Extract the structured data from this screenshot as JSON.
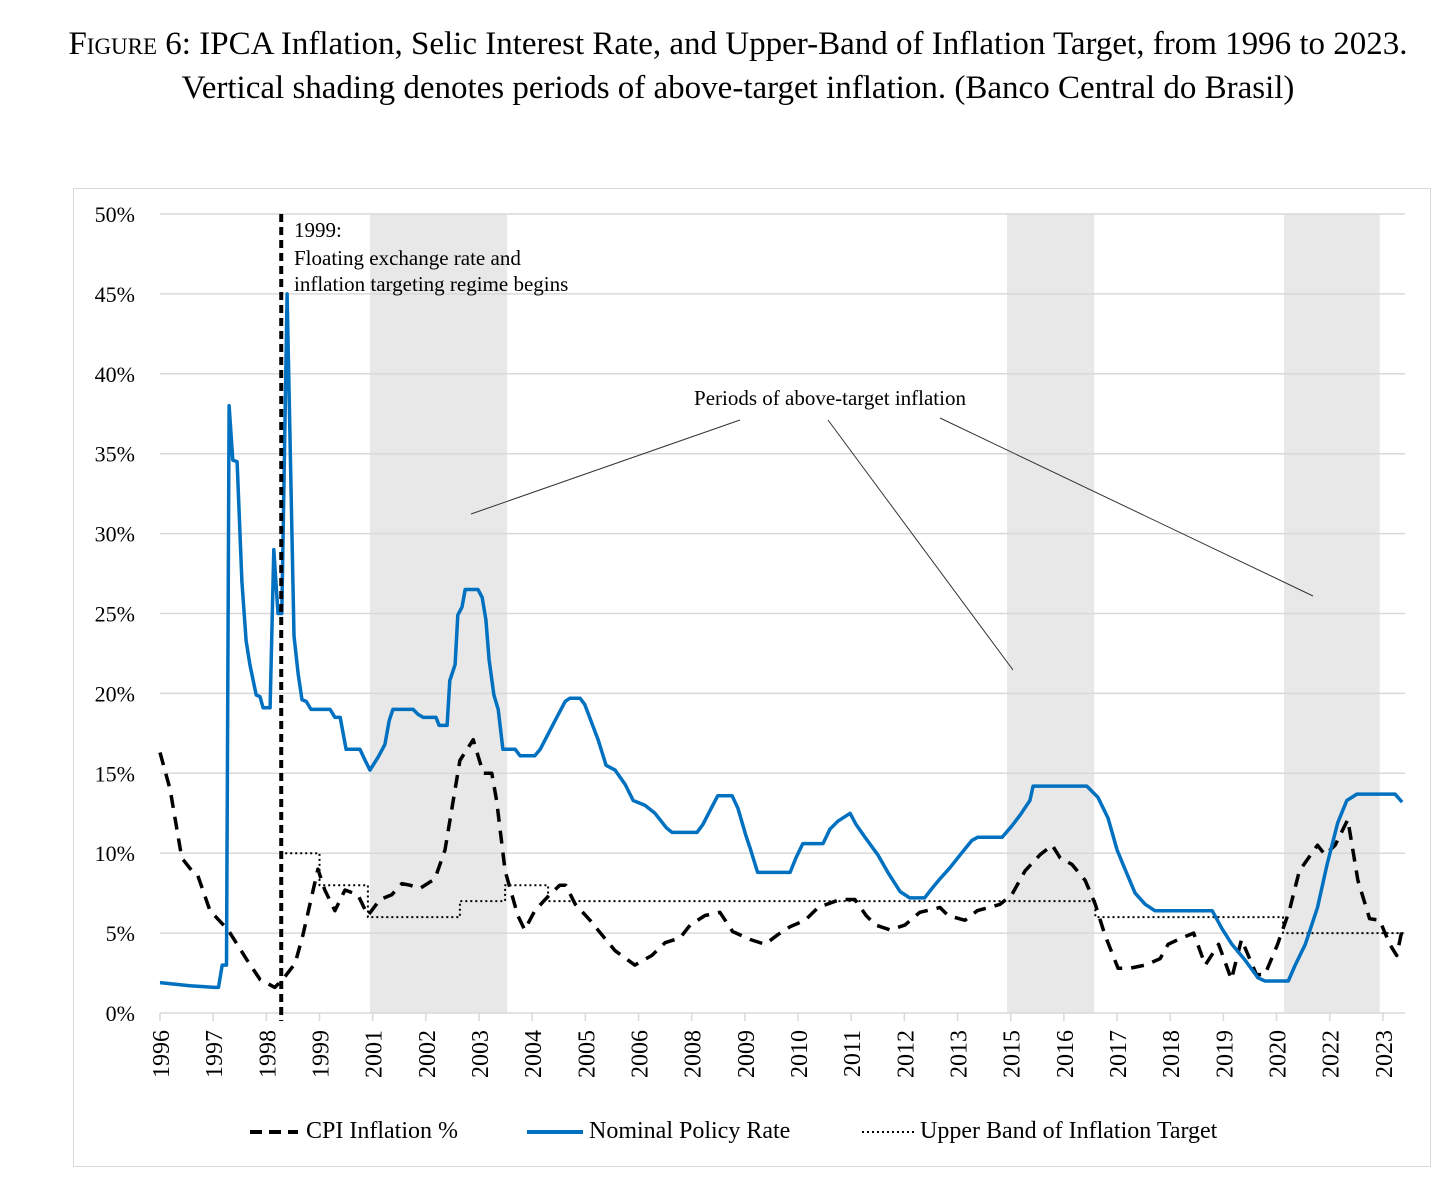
{
  "caption": {
    "figure_label": "Figure 6:",
    "text": "IPCA Inflation, Selic Interest Rate, and Upper-Band of Inflation Target, from 1996 to 2023. Vertical shading denotes periods of above-target inflation. (Banco Central do Brasil)"
  },
  "chart_data": {
    "type": "line",
    "title": "IPCA Inflation, Selic Interest Rate, and Upper-Band of Inflation Target, 1996-2023",
    "xlabel": "",
    "ylabel": "",
    "x_note": "x values are positions measured in tick-label intervals (0 = first tick label)",
    "x_tick_labels": [
      "1996",
      "1997",
      "1998",
      "1999",
      "2001",
      "2002",
      "2003",
      "2004",
      "2005",
      "2006",
      "2008",
      "2009",
      "2010",
      "2011",
      "2012",
      "2013",
      "2015",
      "2016",
      "2017",
      "2018",
      "2019",
      "2020",
      "2022",
      "2023"
    ],
    "y_tick_labels": [
      "0%",
      "5%",
      "10%",
      "15%",
      "20%",
      "25%",
      "30%",
      "35%",
      "40%",
      "45%",
      "50%"
    ],
    "ylim": [
      0,
      50
    ],
    "xlim": [
      0,
      23.42
    ],
    "grid": "horizontal",
    "legend_position": "bottom",
    "annotations": {
      "regime_line_x": 2.28,
      "regime_label_year": "1999:",
      "regime_label_lines": [
        "Floating exchange rate and",
        "inflation targeting regime begins"
      ],
      "periods_label": "Periods of above-target inflation"
    },
    "shaded_periods": [
      [
        3.95,
        6.53
      ],
      [
        15.93,
        17.57
      ],
      [
        21.14,
        22.94
      ]
    ],
    "series": [
      {
        "name": "CPI Inflation %",
        "style": "dashed",
        "color": "#000000",
        "points": [
          [
            0,
            16.3
          ],
          [
            0.19,
            14
          ],
          [
            0.41,
            9.7
          ],
          [
            0.6,
            8.9
          ],
          [
            0.71,
            8.6
          ],
          [
            0.94,
            6.4
          ],
          [
            1.28,
            5.2
          ],
          [
            1.64,
            3.3
          ],
          [
            1.88,
            2.1
          ],
          [
            2.16,
            1.6
          ],
          [
            2.31,
            2.1
          ],
          [
            2.54,
            3.1
          ],
          [
            2.69,
            4.9
          ],
          [
            2.97,
            9
          ],
          [
            3.1,
            7.7
          ],
          [
            3.29,
            6.4
          ],
          [
            3.48,
            7.7
          ],
          [
            3.72,
            7.4
          ],
          [
            3.91,
            6.1
          ],
          [
            4.14,
            7.1
          ],
          [
            4.36,
            7.4
          ],
          [
            4.55,
            8.1
          ],
          [
            4.7,
            8
          ],
          [
            4.89,
            7.8
          ],
          [
            5.17,
            8.4
          ],
          [
            5.36,
            10.2
          ],
          [
            5.64,
            15.8
          ],
          [
            5.89,
            17.1
          ],
          [
            6.08,
            15
          ],
          [
            6.24,
            15
          ],
          [
            6.33,
            13.3
          ],
          [
            6.49,
            8.9
          ],
          [
            6.73,
            6.1
          ],
          [
            6.86,
            5.2
          ],
          [
            7.05,
            6.4
          ],
          [
            7.33,
            7.4
          ],
          [
            7.52,
            8
          ],
          [
            7.63,
            8
          ],
          [
            7.81,
            6.8
          ],
          [
            8.09,
            5.8
          ],
          [
            8.31,
            4.9
          ],
          [
            8.56,
            3.9
          ],
          [
            8.93,
            3.0
          ],
          [
            9.25,
            3.6
          ],
          [
            9.5,
            4.4
          ],
          [
            9.78,
            4.7
          ],
          [
            9.97,
            5.5
          ],
          [
            10.25,
            6.1
          ],
          [
            10.53,
            6.3
          ],
          [
            10.77,
            5.1
          ],
          [
            11.1,
            4.6
          ],
          [
            11.38,
            4.3
          ],
          [
            11.62,
            4.9
          ],
          [
            11.85,
            5.4
          ],
          [
            12.13,
            5.8
          ],
          [
            12.38,
            6.6
          ],
          [
            12.79,
            7.1
          ],
          [
            13.07,
            7.1
          ],
          [
            13.28,
            6.1
          ],
          [
            13.46,
            5.5
          ],
          [
            13.73,
            5.2
          ],
          [
            14.01,
            5.5
          ],
          [
            14.29,
            6.3
          ],
          [
            14.67,
            6.6
          ],
          [
            14.82,
            6.1
          ],
          [
            15.14,
            5.8
          ],
          [
            15.37,
            6.4
          ],
          [
            15.8,
            6.8
          ],
          [
            16.02,
            7.4
          ],
          [
            16.27,
            8.9
          ],
          [
            16.55,
            9.9
          ],
          [
            16.78,
            10.5
          ],
          [
            16.93,
            9.7
          ],
          [
            17.15,
            9.3
          ],
          [
            17.4,
            8.3
          ],
          [
            17.59,
            6.8
          ],
          [
            17.77,
            4.9
          ],
          [
            18.02,
            2.8
          ],
          [
            18.24,
            2.8
          ],
          [
            18.53,
            3.0
          ],
          [
            18.81,
            3.4
          ],
          [
            18.96,
            4.3
          ],
          [
            19.15,
            4.6
          ],
          [
            19.44,
            5
          ],
          [
            19.66,
            3.0
          ],
          [
            19.91,
            4.3
          ],
          [
            20.15,
            2.1
          ],
          [
            20.34,
            4.6
          ],
          [
            20.62,
            2.4
          ],
          [
            20.78,
            2.4
          ],
          [
            21.02,
            4.3
          ],
          [
            21.24,
            6.4
          ],
          [
            21.43,
            8.9
          ],
          [
            21.77,
            10.5
          ],
          [
            21.91,
            9.9
          ],
          [
            22.1,
            10.5
          ],
          [
            22.34,
            12.1
          ],
          [
            22.53,
            8.3
          ],
          [
            22.75,
            5.9
          ],
          [
            22.94,
            5.8
          ],
          [
            23.13,
            4.3
          ],
          [
            23.26,
            3.6
          ],
          [
            23.36,
            5.2
          ]
        ]
      },
      {
        "name": "Nominal Policy Rate",
        "style": "solid",
        "color": "#0070C0",
        "points": [
          [
            0,
            1.9
          ],
          [
            0.56,
            1.7
          ],
          [
            1.03,
            1.6
          ],
          [
            1.1,
            1.6
          ],
          [
            1.17,
            3.0
          ],
          [
            1.25,
            3.0
          ],
          [
            1.3,
            38
          ],
          [
            1.37,
            34.6
          ],
          [
            1.45,
            34.5
          ],
          [
            1.54,
            27
          ],
          [
            1.62,
            23.3
          ],
          [
            1.69,
            21.8
          ],
          [
            1.81,
            19.9
          ],
          [
            1.88,
            19.8
          ],
          [
            1.94,
            19.1
          ],
          [
            2.07,
            19.1
          ],
          [
            2.14,
            29
          ],
          [
            2.22,
            25
          ],
          [
            2.29,
            25
          ],
          [
            2.39,
            45
          ],
          [
            2.52,
            23.6
          ],
          [
            2.6,
            21.2
          ],
          [
            2.67,
            19.6
          ],
          [
            2.75,
            19.5
          ],
          [
            2.84,
            19
          ],
          [
            3.2,
            19
          ],
          [
            3.29,
            18.5
          ],
          [
            3.39,
            18.5
          ],
          [
            3.5,
            16.5
          ],
          [
            3.76,
            16.5
          ],
          [
            3.86,
            15.8
          ],
          [
            3.95,
            15.2
          ],
          [
            4.1,
            16
          ],
          [
            4.23,
            16.8
          ],
          [
            4.31,
            18.3
          ],
          [
            4.38,
            19
          ],
          [
            4.76,
            19
          ],
          [
            4.85,
            18.7
          ],
          [
            4.95,
            18.5
          ],
          [
            5.19,
            18.5
          ],
          [
            5.25,
            18
          ],
          [
            5.4,
            18
          ],
          [
            5.45,
            20.8
          ],
          [
            5.55,
            21.8
          ],
          [
            5.6,
            24.9
          ],
          [
            5.68,
            25.4
          ],
          [
            5.74,
            26.5
          ],
          [
            5.98,
            26.5
          ],
          [
            6.06,
            26
          ],
          [
            6.13,
            24.6
          ],
          [
            6.19,
            22.1
          ],
          [
            6.28,
            19.9
          ],
          [
            6.36,
            19
          ],
          [
            6.45,
            16.5
          ],
          [
            6.68,
            16.5
          ],
          [
            6.77,
            16.1
          ],
          [
            7.05,
            16.1
          ],
          [
            7.15,
            16.5
          ],
          [
            7.43,
            18.3
          ],
          [
            7.62,
            19.5
          ],
          [
            7.71,
            19.7
          ],
          [
            7.9,
            19.7
          ],
          [
            7.99,
            19.3
          ],
          [
            8.24,
            17.1
          ],
          [
            8.39,
            15.5
          ],
          [
            8.56,
            15.2
          ],
          [
            8.75,
            14.3
          ],
          [
            8.9,
            13.3
          ],
          [
            9.12,
            13
          ],
          [
            9.31,
            12.5
          ],
          [
            9.52,
            11.6
          ],
          [
            9.63,
            11.3
          ],
          [
            10.1,
            11.3
          ],
          [
            10.21,
            11.8
          ],
          [
            10.38,
            12.9
          ],
          [
            10.49,
            13.6
          ],
          [
            10.76,
            13.6
          ],
          [
            10.87,
            12.8
          ],
          [
            11.02,
            11.1
          ],
          [
            11.1,
            10.3
          ],
          [
            11.24,
            8.8
          ],
          [
            11.85,
            8.8
          ],
          [
            11.96,
            9.7
          ],
          [
            12.09,
            10.6
          ],
          [
            12.47,
            10.6
          ],
          [
            12.6,
            11.5
          ],
          [
            12.75,
            12
          ],
          [
            12.98,
            12.5
          ],
          [
            13.09,
            11.8
          ],
          [
            13.26,
            11
          ],
          [
            13.5,
            9.9
          ],
          [
            13.69,
            8.8
          ],
          [
            13.92,
            7.6
          ],
          [
            14.1,
            7.2
          ],
          [
            14.38,
            7.2
          ],
          [
            14.52,
            7.8
          ],
          [
            14.67,
            8.4
          ],
          [
            14.86,
            9.1
          ],
          [
            15.05,
            9.9
          ],
          [
            15.27,
            10.8
          ],
          [
            15.38,
            11
          ],
          [
            15.84,
            11
          ],
          [
            16.02,
            11.7
          ],
          [
            16.18,
            12.4
          ],
          [
            16.36,
            13.3
          ],
          [
            16.42,
            14.2
          ],
          [
            17.43,
            14.2
          ],
          [
            17.64,
            13.5
          ],
          [
            17.83,
            12.2
          ],
          [
            18.0,
            10.2
          ],
          [
            18.15,
            9
          ],
          [
            18.34,
            7.5
          ],
          [
            18.53,
            6.8
          ],
          [
            18.71,
            6.4
          ],
          [
            19.79,
            6.4
          ],
          [
            19.97,
            5.3
          ],
          [
            20.16,
            4.3
          ],
          [
            20.41,
            3.3
          ],
          [
            20.65,
            2.2
          ],
          [
            20.78,
            2.0
          ],
          [
            21.22,
            2.0
          ],
          [
            21.35,
            3.0
          ],
          [
            21.54,
            4.3
          ],
          [
            21.77,
            6.6
          ],
          [
            21.95,
            9.3
          ],
          [
            22.15,
            11.9
          ],
          [
            22.32,
            13.3
          ],
          [
            22.51,
            13.7
          ],
          [
            23.23,
            13.7
          ],
          [
            23.36,
            13.2
          ]
        ]
      },
      {
        "name": "Upper Band of Inflation Target",
        "style": "dotted",
        "color": "#000000",
        "points": [
          [
            2.26,
            10
          ],
          [
            3.0,
            10
          ],
          [
            3.0,
            8
          ],
          [
            3.91,
            8
          ],
          [
            3.91,
            6
          ],
          [
            5.64,
            6
          ],
          [
            5.64,
            7
          ],
          [
            6.49,
            7
          ],
          [
            6.49,
            8
          ],
          [
            7.3,
            8
          ],
          [
            7.3,
            7
          ],
          [
            17.59,
            7
          ],
          [
            17.59,
            6
          ],
          [
            21.12,
            6
          ],
          [
            21.12,
            5
          ],
          [
            23.42,
            5
          ]
        ]
      }
    ]
  }
}
